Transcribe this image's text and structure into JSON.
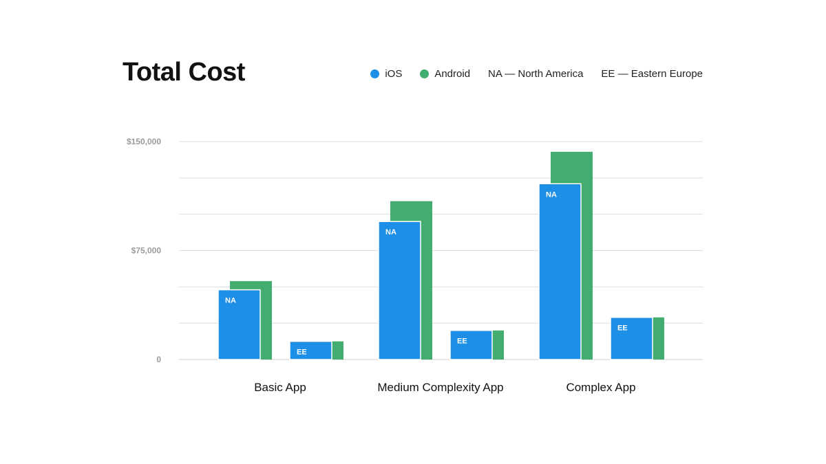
{
  "chart_data": {
    "type": "bar",
    "title": "Total Cost",
    "categories": [
      "Basic App",
      "Medium Complexity App",
      "Complex App"
    ],
    "regions": [
      "NA",
      "EE"
    ],
    "series": [
      {
        "name": "iOS",
        "color": "#1e8fe6",
        "values": {
          "NA": [
            48000,
            95000,
            121000
          ],
          "EE": [
            12500,
            20000,
            29000
          ]
        }
      },
      {
        "name": "Android",
        "color": "#42ad6e",
        "values": {
          "NA": [
            54000,
            109000,
            143000
          ],
          "EE": [
            12500,
            20000,
            29000
          ]
        }
      }
    ],
    "legend": [
      {
        "label": "iOS",
        "color": "#1e8fe6"
      },
      {
        "label": "Android",
        "color": "#42ad6e"
      },
      {
        "label": "NA — North America"
      },
      {
        "label": "EE — Eastern Europe"
      }
    ],
    "y_ticks": [
      {
        "value": 150000,
        "label": "$150,000"
      },
      {
        "value": 75000,
        "label": "$75,000"
      },
      {
        "value": 0,
        "label": "0"
      }
    ],
    "ylim": [
      0,
      150000
    ],
    "grid": true,
    "legend_placement": "top-right"
  }
}
